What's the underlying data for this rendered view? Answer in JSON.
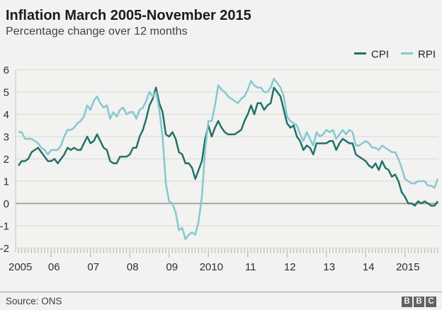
{
  "header": {
    "title": "Inflation March 2005-November 2015",
    "subtitle": "Percentage change over 12 months"
  },
  "footer": {
    "source": "Source: ONS",
    "logo_letters": [
      "B",
      "B",
      "C"
    ]
  },
  "colors": {
    "background": "#f2f2f0",
    "cpi": "#237169",
    "rpi": "#85c8d1",
    "gridline": "#d9d8d5",
    "zero_line": "#8f8f8f"
  },
  "chart_data": {
    "type": "line",
    "title": "Inflation March 2005-November 2015",
    "subtitle": "Percentage change over 12 months",
    "x_start": "March 2005",
    "x_end": "November 2015",
    "x_frequency": "monthly",
    "ylim": [
      -2,
      6
    ],
    "grid": "horizontal",
    "legend_position": "top-right",
    "yticks": [
      6,
      5,
      4,
      3,
      2,
      1,
      0,
      -1,
      -2
    ],
    "xticks": [
      {
        "label": "2005",
        "month_index": 0
      },
      {
        "label": "06",
        "month_index": 10
      },
      {
        "label": "07",
        "month_index": 22
      },
      {
        "label": "08",
        "month_index": 34
      },
      {
        "label": "09",
        "month_index": 46
      },
      {
        "label": "2010",
        "month_index": 58
      },
      {
        "label": "11",
        "month_index": 70
      },
      {
        "label": "12",
        "month_index": 82
      },
      {
        "label": "13",
        "month_index": 94
      },
      {
        "label": "14",
        "month_index": 106
      },
      {
        "label": "2015",
        "month_index": 118
      }
    ],
    "series": [
      {
        "name": "CPI",
        "color": "#237169",
        "values": [
          1.7,
          1.9,
          1.9,
          2.0,
          2.3,
          2.4,
          2.5,
          2.3,
          2.1,
          1.9,
          1.9,
          2.0,
          1.8,
          2.0,
          2.2,
          2.5,
          2.4,
          2.5,
          2.4,
          2.4,
          2.7,
          3.0,
          2.7,
          2.8,
          3.1,
          2.8,
          2.5,
          2.4,
          1.9,
          1.8,
          1.8,
          2.1,
          2.1,
          2.1,
          2.2,
          2.5,
          2.5,
          3.0,
          3.3,
          3.8,
          4.4,
          4.7,
          5.2,
          4.5,
          4.1,
          3.1,
          3.0,
          3.2,
          2.9,
          2.3,
          2.2,
          1.8,
          1.8,
          1.6,
          1.1,
          1.5,
          1.9,
          2.9,
          3.5,
          3.0,
          3.4,
          3.7,
          3.4,
          3.2,
          3.1,
          3.1,
          3.1,
          3.2,
          3.3,
          3.7,
          4.0,
          4.4,
          4.0,
          4.5,
          4.5,
          4.2,
          4.4,
          4.5,
          5.2,
          5.0,
          4.8,
          4.2,
          3.6,
          3.4,
          3.5,
          3.0,
          2.8,
          2.4,
          2.6,
          2.5,
          2.2,
          2.7,
          2.7,
          2.7,
          2.7,
          2.8,
          2.8,
          2.4,
          2.7,
          2.9,
          2.8,
          2.7,
          2.7,
          2.2,
          2.1,
          2.0,
          1.9,
          1.7,
          1.6,
          1.8,
          1.5,
          1.9,
          1.6,
          1.5,
          1.2,
          1.3,
          1.0,
          0.5,
          0.3,
          0.0,
          0.0,
          -0.1,
          0.1,
          0.0,
          0.1,
          0.0,
          -0.1,
          -0.1,
          0.1
        ]
      },
      {
        "name": "RPI",
        "color": "#85c8d1",
        "values": [
          3.2,
          3.2,
          2.9,
          2.9,
          2.9,
          2.8,
          2.7,
          2.5,
          2.4,
          2.2,
          2.4,
          2.4,
          2.4,
          2.6,
          3.0,
          3.3,
          3.3,
          3.4,
          3.6,
          3.7,
          3.9,
          4.4,
          4.2,
          4.6,
          4.8,
          4.5,
          4.3,
          4.4,
          3.8,
          4.1,
          3.9,
          4.2,
          4.3,
          4.0,
          4.1,
          4.1,
          3.8,
          4.2,
          4.3,
          4.6,
          5.0,
          4.8,
          5.0,
          4.2,
          3.0,
          0.9,
          0.1,
          0.0,
          -0.4,
          -1.2,
          -1.1,
          -1.6,
          -1.4,
          -1.3,
          -1.4,
          -0.8,
          0.3,
          2.4,
          3.7,
          3.7,
          4.4,
          5.3,
          5.1,
          5.0,
          4.8,
          4.7,
          4.6,
          4.5,
          4.7,
          4.8,
          5.1,
          5.5,
          5.3,
          5.2,
          5.2,
          5.0,
          5.0,
          5.2,
          5.6,
          5.4,
          5.2,
          4.8,
          3.9,
          3.7,
          3.6,
          3.5,
          3.1,
          2.8,
          3.2,
          2.9,
          2.6,
          3.2,
          3.0,
          3.1,
          3.3,
          3.2,
          3.3,
          2.9,
          3.1,
          3.3,
          3.1,
          3.3,
          3.2,
          2.6,
          2.6,
          2.7,
          2.8,
          2.7,
          2.5,
          2.5,
          2.4,
          2.6,
          2.5,
          2.4,
          2.3,
          2.3,
          2.0,
          1.6,
          1.1,
          1.0,
          0.9,
          0.9,
          1.0,
          1.0,
          1.0,
          0.8,
          0.8,
          0.7,
          1.1
        ]
      }
    ]
  }
}
